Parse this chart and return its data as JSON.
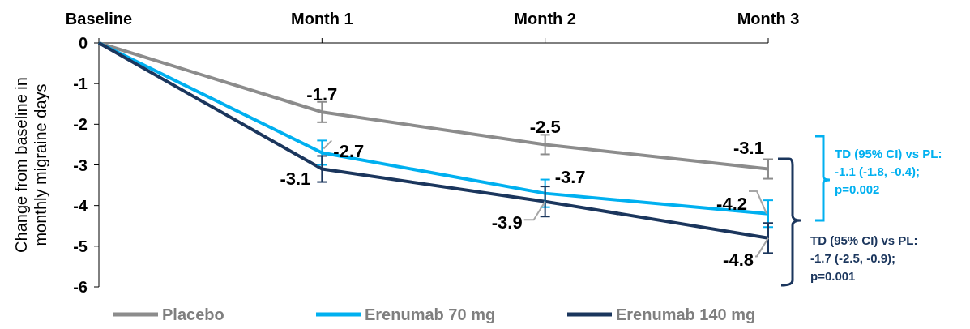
{
  "chart_data": {
    "type": "line",
    "ylabel": "Change from baseline in\nmonthly migraine days",
    "categories": [
      "Baseline",
      "Month 1",
      "Month 2",
      "Month 3"
    ],
    "ylim": [
      -6,
      0
    ],
    "yticks": [
      0,
      -1,
      -2,
      -3,
      -4,
      -5,
      -6
    ],
    "series": [
      {
        "name": "Placebo",
        "color": "#8c8c8c",
        "values": [
          0,
          -1.7,
          -2.5,
          -3.1
        ],
        "errors": [
          null,
          0.25,
          0.24,
          0.24
        ],
        "value_labels": [
          null,
          "-1.7",
          "-2.5",
          "-3.1"
        ]
      },
      {
        "name": "Erenumab 70 mg",
        "color": "#00b0f0",
        "values": [
          0,
          -2.7,
          -3.7,
          -4.2
        ],
        "errors": [
          null,
          0.3,
          0.34,
          0.33
        ],
        "value_labels": [
          null,
          "-2.7",
          "-3.7",
          "-4.2"
        ]
      },
      {
        "name": "Erenumab 140 mg",
        "color": "#1b365d",
        "values": [
          0,
          -3.1,
          -3.9,
          -4.8
        ],
        "errors": [
          null,
          0.32,
          0.37,
          0.37
        ],
        "value_labels": [
          null,
          "-3.1",
          "-3.9",
          "-4.8"
        ]
      }
    ],
    "annotations": [
      "TD (95% CI) vs PL:\n-1.1 (-1.8, -0.4);\np=0.002",
      "TD (95% CI) vs PL:\n-1.7 (-2.5, -0.9);\np=0.001"
    ],
    "legend": "bottom",
    "marker": "none",
    "line_style": "solid",
    "grid": false
  }
}
